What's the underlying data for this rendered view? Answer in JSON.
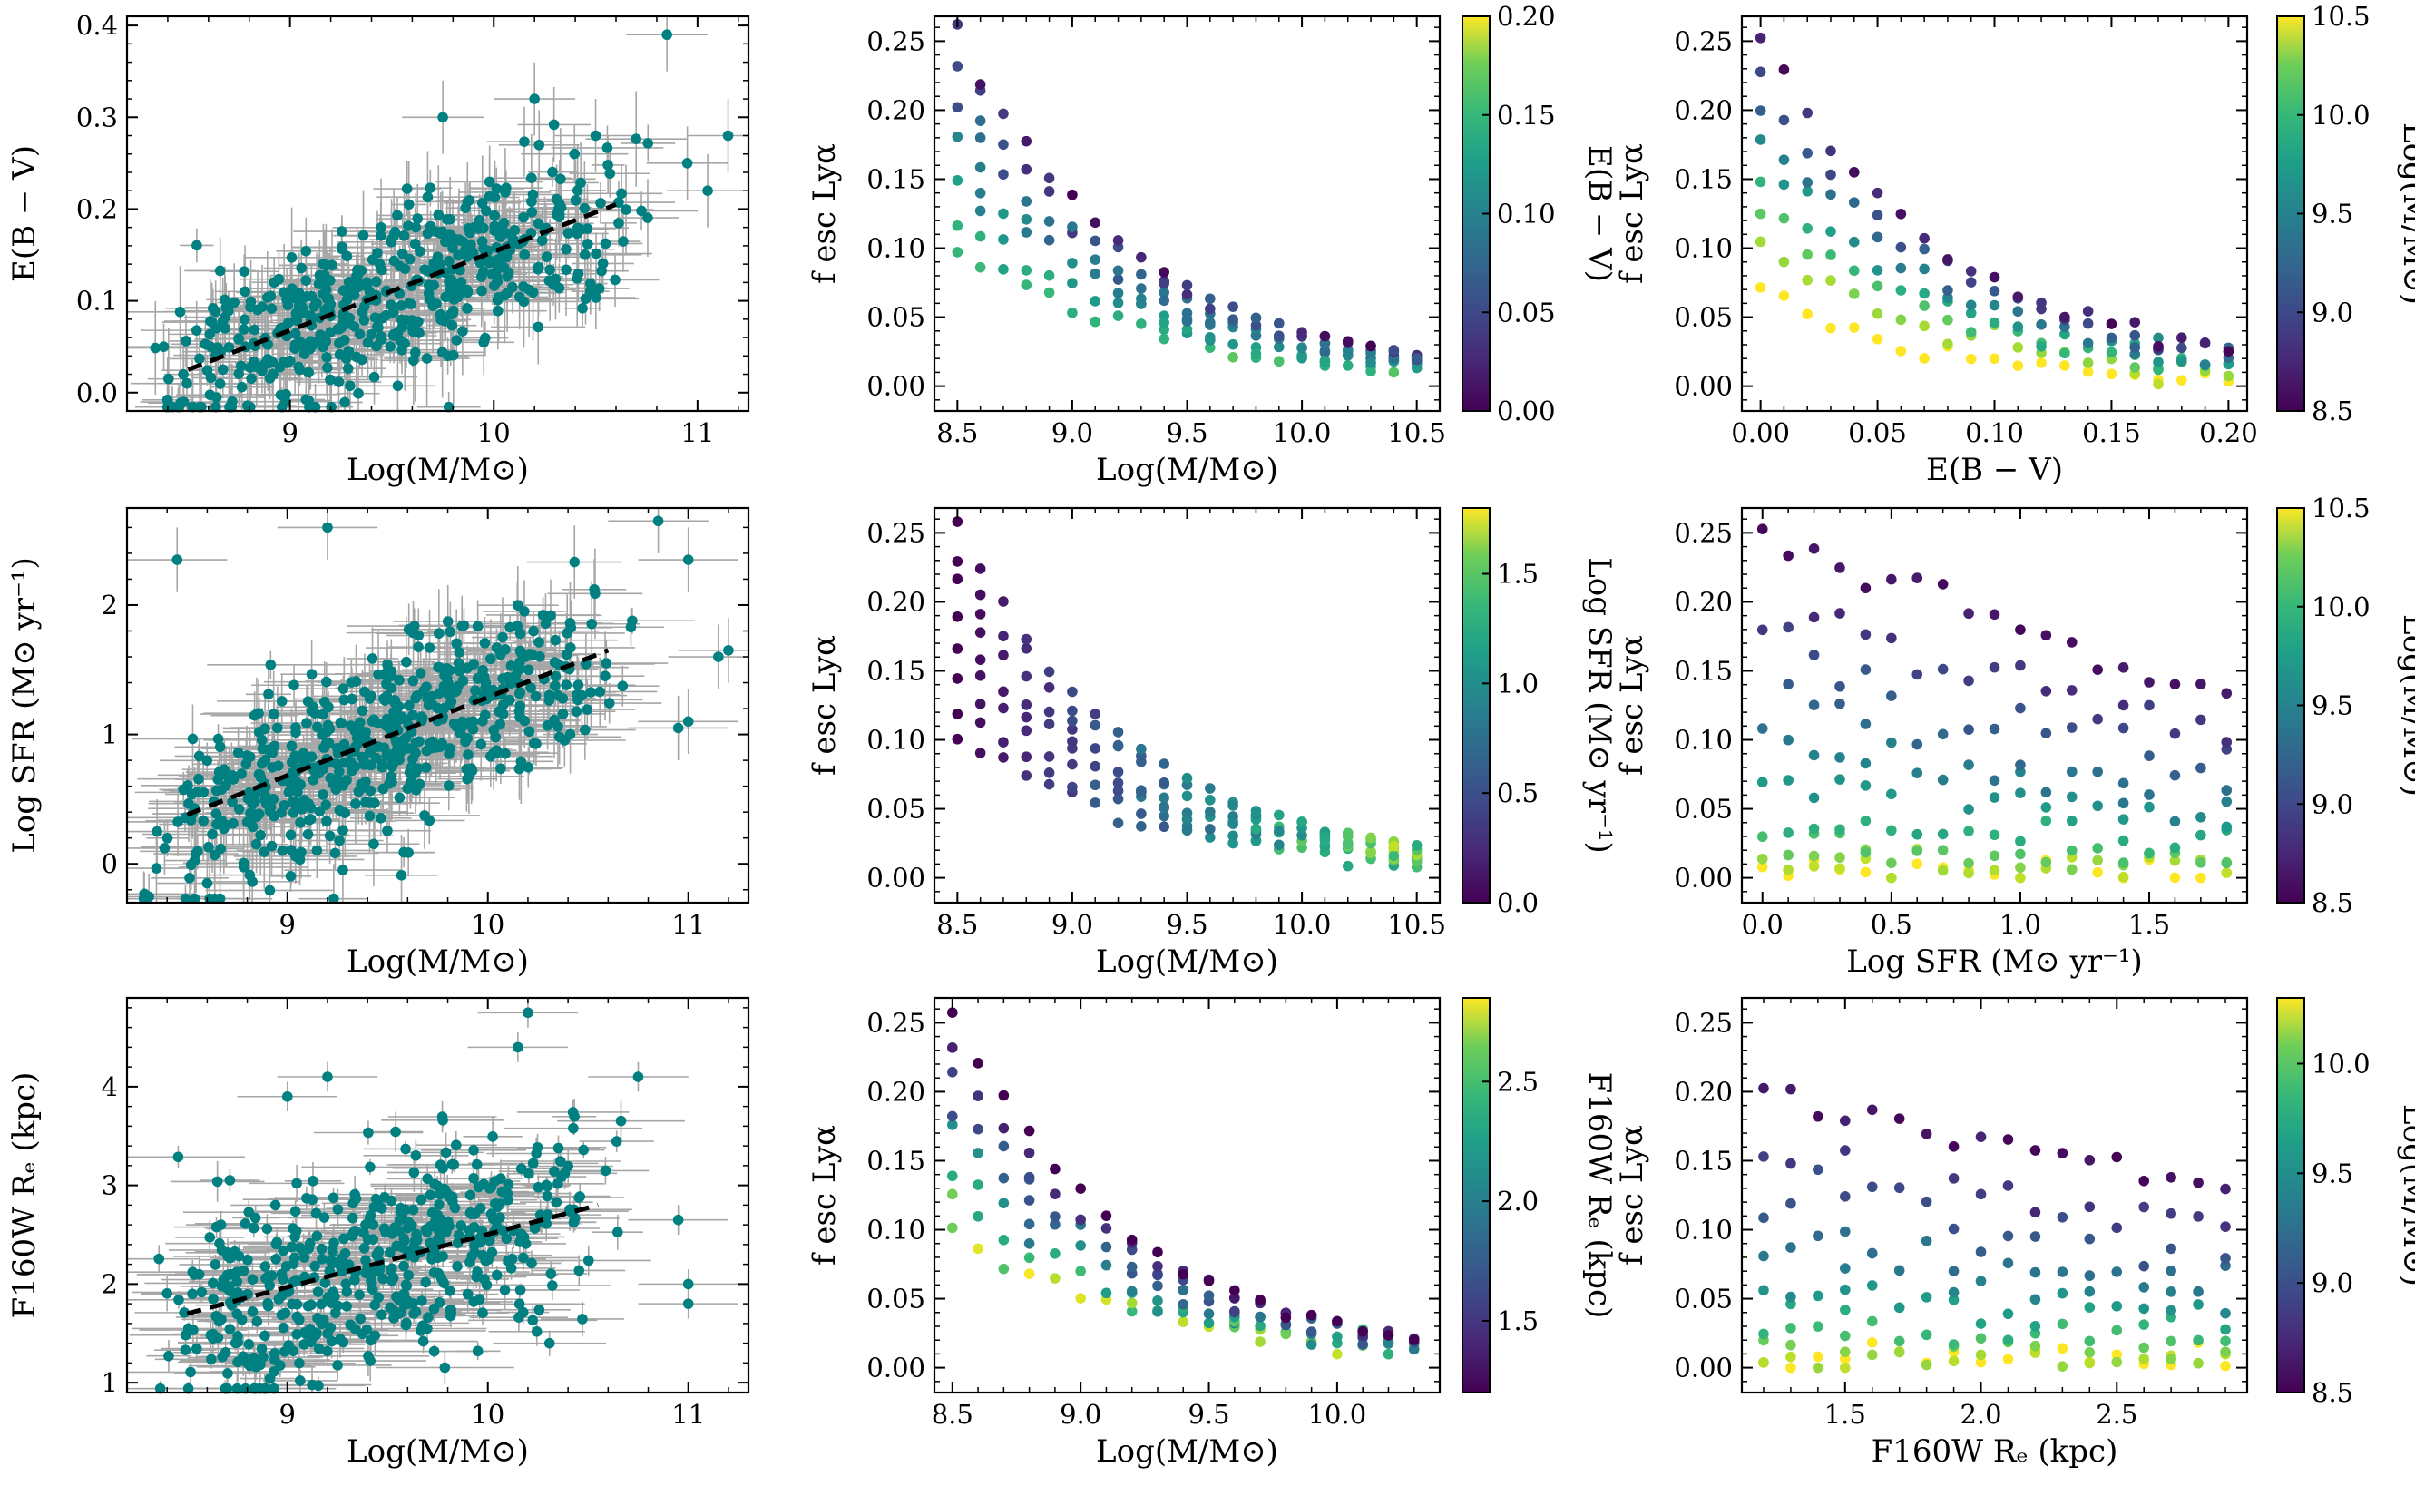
{
  "figure": {
    "description_colormap_low": "#440154",
    "description_colormap_high": "#fde725",
    "point_color": "#008080",
    "errorbar_color": "#a6a6a6"
  },
  "chart_data": [
    {
      "id": "p1",
      "type": "scatter",
      "xlabel": "Log(M/M⊙)",
      "ylabel": "E(B − V)",
      "xlim": [
        8.2,
        11.25
      ],
      "ylim": [
        -0.02,
        0.41
      ],
      "xticks": [
        "9",
        "10",
        "11"
      ],
      "xtick_values": [
        9,
        10,
        11
      ],
      "yticks": [
        "0.0",
        "0.1",
        "0.2",
        "0.3",
        "0.4"
      ],
      "ytick_values": [
        0,
        0.1,
        0.2,
        0.3,
        0.4
      ],
      "trend": {
        "x": [
          8.5,
          10.6
        ],
        "y": [
          0.025,
          0.205
        ]
      },
      "cloud": {
        "n": 520,
        "xmin": 8.3,
        "xmax": 10.8,
        "slope": 0.085,
        "intercept": -0.7,
        "scatter": 0.045,
        "xerr": 0.2,
        "yerr": 0.04
      },
      "outliers": [
        [
          10.85,
          0.39
        ],
        [
          11.15,
          0.28
        ],
        [
          10.95,
          0.25
        ],
        [
          11.05,
          0.22
        ],
        [
          10.2,
          0.32
        ],
        [
          9.75,
          0.3
        ],
        [
          10.5,
          0.28
        ]
      ]
    },
    {
      "id": "p2",
      "type": "scatter",
      "xlabel": "Log(M/M⊙)",
      "ylabel": "f esc Lyα",
      "xlim": [
        8.4,
        10.6
      ],
      "ylim": [
        -0.018,
        0.268
      ],
      "xticks": [
        "8.5",
        "9.0",
        "9.5",
        "10.0",
        "10.5"
      ],
      "xtick_values": [
        8.5,
        9.0,
        9.5,
        10.0,
        10.5
      ],
      "yticks": [
        "0.00",
        "0.05",
        "0.10",
        "0.15",
        "0.20",
        "0.25"
      ],
      "ytick_values": [
        0,
        0.05,
        0.1,
        0.15,
        0.2,
        0.25
      ],
      "grid_x": {
        "start": 8.5,
        "step": 0.1,
        "count": 21
      },
      "grid_y_pattern": [
        0.245,
        0.21,
        0.2,
        0.17,
        0.15,
        0.13,
        0.1,
        0.08
      ],
      "colorbar": {
        "label": "E(B − V)",
        "min": 0.0,
        "max": 0.2,
        "ticks": [
          "0.00",
          "0.05",
          "0.10",
          "0.15",
          "0.20"
        ],
        "tick_values": [
          0,
          0.05,
          0.1,
          0.15,
          0.2
        ]
      }
    },
    {
      "id": "p3",
      "type": "scatter",
      "xlabel": "E(B − V)",
      "ylabel": "f esc Lyα",
      "xlim": [
        -0.008,
        0.208
      ],
      "ylim": [
        -0.018,
        0.268
      ],
      "xticks": [
        "0.00",
        "0.05",
        "0.10",
        "0.15",
        "0.20"
      ],
      "xtick_values": [
        0,
        0.05,
        0.1,
        0.15,
        0.2
      ],
      "yticks": [
        "0.00",
        "0.05",
        "0.10",
        "0.15",
        "0.20",
        "0.25"
      ],
      "ytick_values": [
        0,
        0.05,
        0.1,
        0.15,
        0.2,
        0.25
      ],
      "grid_x": {
        "start": 0.0,
        "step": 0.01,
        "count": 21
      },
      "colorbar": {
        "label": "Log(M/M⊙)",
        "min": 8.5,
        "max": 10.5,
        "ticks": [
          "8.5",
          "9.0",
          "9.5",
          "10.0",
          "10.5"
        ],
        "tick_values": [
          8.5,
          9.0,
          9.5,
          10.0,
          10.5
        ]
      }
    },
    {
      "id": "p4",
      "type": "scatter",
      "xlabel": "Log(M/M⊙)",
      "ylabel": "Log SFR (M⊙ yr⁻¹)",
      "xlim": [
        8.2,
        11.3
      ],
      "ylim": [
        -0.3,
        2.75
      ],
      "xticks": [
        "9",
        "10",
        "11"
      ],
      "xtick_values": [
        9,
        10,
        11
      ],
      "yticks": [
        "0",
        "1",
        "2"
      ],
      "ytick_values": [
        0,
        1,
        2
      ],
      "trend": {
        "x": [
          8.5,
          10.6
        ],
        "y": [
          0.38,
          1.65
        ]
      },
      "cloud": {
        "n": 560,
        "xmin": 8.25,
        "xmax": 10.75,
        "slope": 0.6,
        "intercept": -4.72,
        "scatter": 0.35,
        "xerr": 0.25,
        "yerr": 0.25
      },
      "outliers": [
        [
          8.45,
          2.35
        ],
        [
          9.2,
          2.6
        ],
        [
          10.85,
          2.65
        ],
        [
          11.0,
          2.35
        ],
        [
          11.15,
          1.6
        ],
        [
          11.2,
          1.65
        ],
        [
          11.0,
          1.1
        ],
        [
          10.95,
          1.05
        ],
        [
          8.35,
          0.25
        ],
        [
          8.6,
          -0.15
        ]
      ]
    },
    {
      "id": "p5",
      "type": "scatter",
      "xlabel": "Log(M/M⊙)",
      "ylabel": "f esc Lyα",
      "xlim": [
        8.4,
        10.6
      ],
      "ylim": [
        -0.018,
        0.268
      ],
      "xticks": [
        "8.5",
        "9.0",
        "9.5",
        "10.0",
        "10.5"
      ],
      "xtick_values": [
        8.5,
        9.0,
        9.5,
        10.0,
        10.5
      ],
      "yticks": [
        "0.00",
        "0.05",
        "0.10",
        "0.15",
        "0.20",
        "0.25"
      ],
      "ytick_values": [
        0,
        0.05,
        0.1,
        0.15,
        0.2,
        0.25
      ],
      "grid_x": {
        "start": 8.5,
        "step": 0.1,
        "count": 21
      },
      "colorbar": {
        "label": "Log SFR (M⊙ yr⁻¹)",
        "min": 0.0,
        "max": 1.8,
        "ticks": [
          "0.0",
          "0.5",
          "1.0",
          "1.5"
        ],
        "tick_values": [
          0,
          0.5,
          1.0,
          1.5
        ]
      }
    },
    {
      "id": "p6",
      "type": "scatter",
      "xlabel": "Log SFR (M⊙ yr⁻¹)",
      "ylabel": "f esc Lyα",
      "xlim": [
        -0.08,
        1.88
      ],
      "ylim": [
        -0.018,
        0.268
      ],
      "xticks": [
        "0.0",
        "0.5",
        "1.0",
        "1.5"
      ],
      "xtick_values": [
        0,
        0.5,
        1.0,
        1.5
      ],
      "yticks": [
        "0.00",
        "0.05",
        "0.10",
        "0.15",
        "0.20",
        "0.25"
      ],
      "ytick_values": [
        0,
        0.05,
        0.1,
        0.15,
        0.2,
        0.25
      ],
      "grid_x": {
        "start": 0.0,
        "step": 0.1,
        "count": 19
      },
      "colorbar": {
        "label": "Log(M/M⊙)",
        "min": 8.5,
        "max": 10.5,
        "ticks": [
          "8.5",
          "9.0",
          "9.5",
          "10.0",
          "10.5"
        ],
        "tick_values": [
          8.5,
          9.0,
          9.5,
          10.0,
          10.5
        ]
      }
    },
    {
      "id": "p7",
      "type": "scatter",
      "xlabel": "Log(M/M⊙)",
      "ylabel": "F160W Rₑ (kpc)",
      "xlim": [
        8.2,
        11.3
      ],
      "ylim": [
        0.9,
        4.9
      ],
      "xticks": [
        "9",
        "10",
        "11"
      ],
      "xtick_values": [
        9,
        10,
        11
      ],
      "yticks": [
        "1",
        "2",
        "3",
        "4"
      ],
      "ytick_values": [
        1,
        2,
        3,
        4
      ],
      "trend": {
        "x": [
          8.5,
          10.55
        ],
        "y": [
          1.7,
          2.8
        ]
      },
      "cloud": {
        "n": 520,
        "xmin": 8.3,
        "xmax": 10.7,
        "slope": 0.54,
        "intercept": -2.9,
        "scatter": 0.5,
        "xerr": 0.25,
        "yerr": 0.15
      },
      "outliers": [
        [
          10.2,
          4.75
        ],
        [
          10.15,
          4.4
        ],
        [
          10.75,
          4.1
        ],
        [
          10.95,
          2.65
        ],
        [
          11.0,
          2.0
        ],
        [
          11.0,
          1.8
        ],
        [
          9.0,
          3.9
        ],
        [
          9.2,
          4.1
        ]
      ]
    },
    {
      "id": "p8",
      "type": "scatter",
      "xlabel": "Log(M/M⊙)",
      "ylabel": "f esc Lyα",
      "xlim": [
        8.43,
        10.4
      ],
      "ylim": [
        -0.018,
        0.268
      ],
      "xticks": [
        "8.5",
        "9.0",
        "9.5",
        "10.0"
      ],
      "xtick_values": [
        8.5,
        9.0,
        9.5,
        10.0
      ],
      "yticks": [
        "0.00",
        "0.05",
        "0.10",
        "0.15",
        "0.20",
        "0.25"
      ],
      "ytick_values": [
        0,
        0.05,
        0.1,
        0.15,
        0.2,
        0.25
      ],
      "grid_x": {
        "start": 8.5,
        "step": 0.1,
        "count": 19
      },
      "colorbar": {
        "label": "F160W Rₑ (kpc)",
        "min": 1.2,
        "max": 2.85,
        "ticks": [
          "1.5",
          "2.0",
          "2.5"
        ],
        "tick_values": [
          1.5,
          2.0,
          2.5
        ]
      }
    },
    {
      "id": "p9",
      "type": "scatter",
      "xlabel": "F160W Rₑ (kpc)",
      "ylabel": "f esc Lyα",
      "xlim": [
        1.12,
        2.98
      ],
      "ylim": [
        -0.018,
        0.268
      ],
      "xticks": [
        "1.5",
        "2.0",
        "2.5"
      ],
      "xtick_values": [
        1.5,
        2.0,
        2.5
      ],
      "yticks": [
        "0.00",
        "0.05",
        "0.10",
        "0.15",
        "0.20",
        "0.25"
      ],
      "ytick_values": [
        0,
        0.05,
        0.1,
        0.15,
        0.2,
        0.25
      ],
      "grid_x": {
        "start": 1.2,
        "step": 0.1,
        "count": 18
      },
      "colorbar": {
        "label": "Log(M/M⊙)",
        "min": 8.5,
        "max": 10.3,
        "ticks": [
          "8.5",
          "9.0",
          "9.5",
          "10.0"
        ],
        "tick_values": [
          8.5,
          9.0,
          9.5,
          10.0
        ]
      }
    }
  ]
}
